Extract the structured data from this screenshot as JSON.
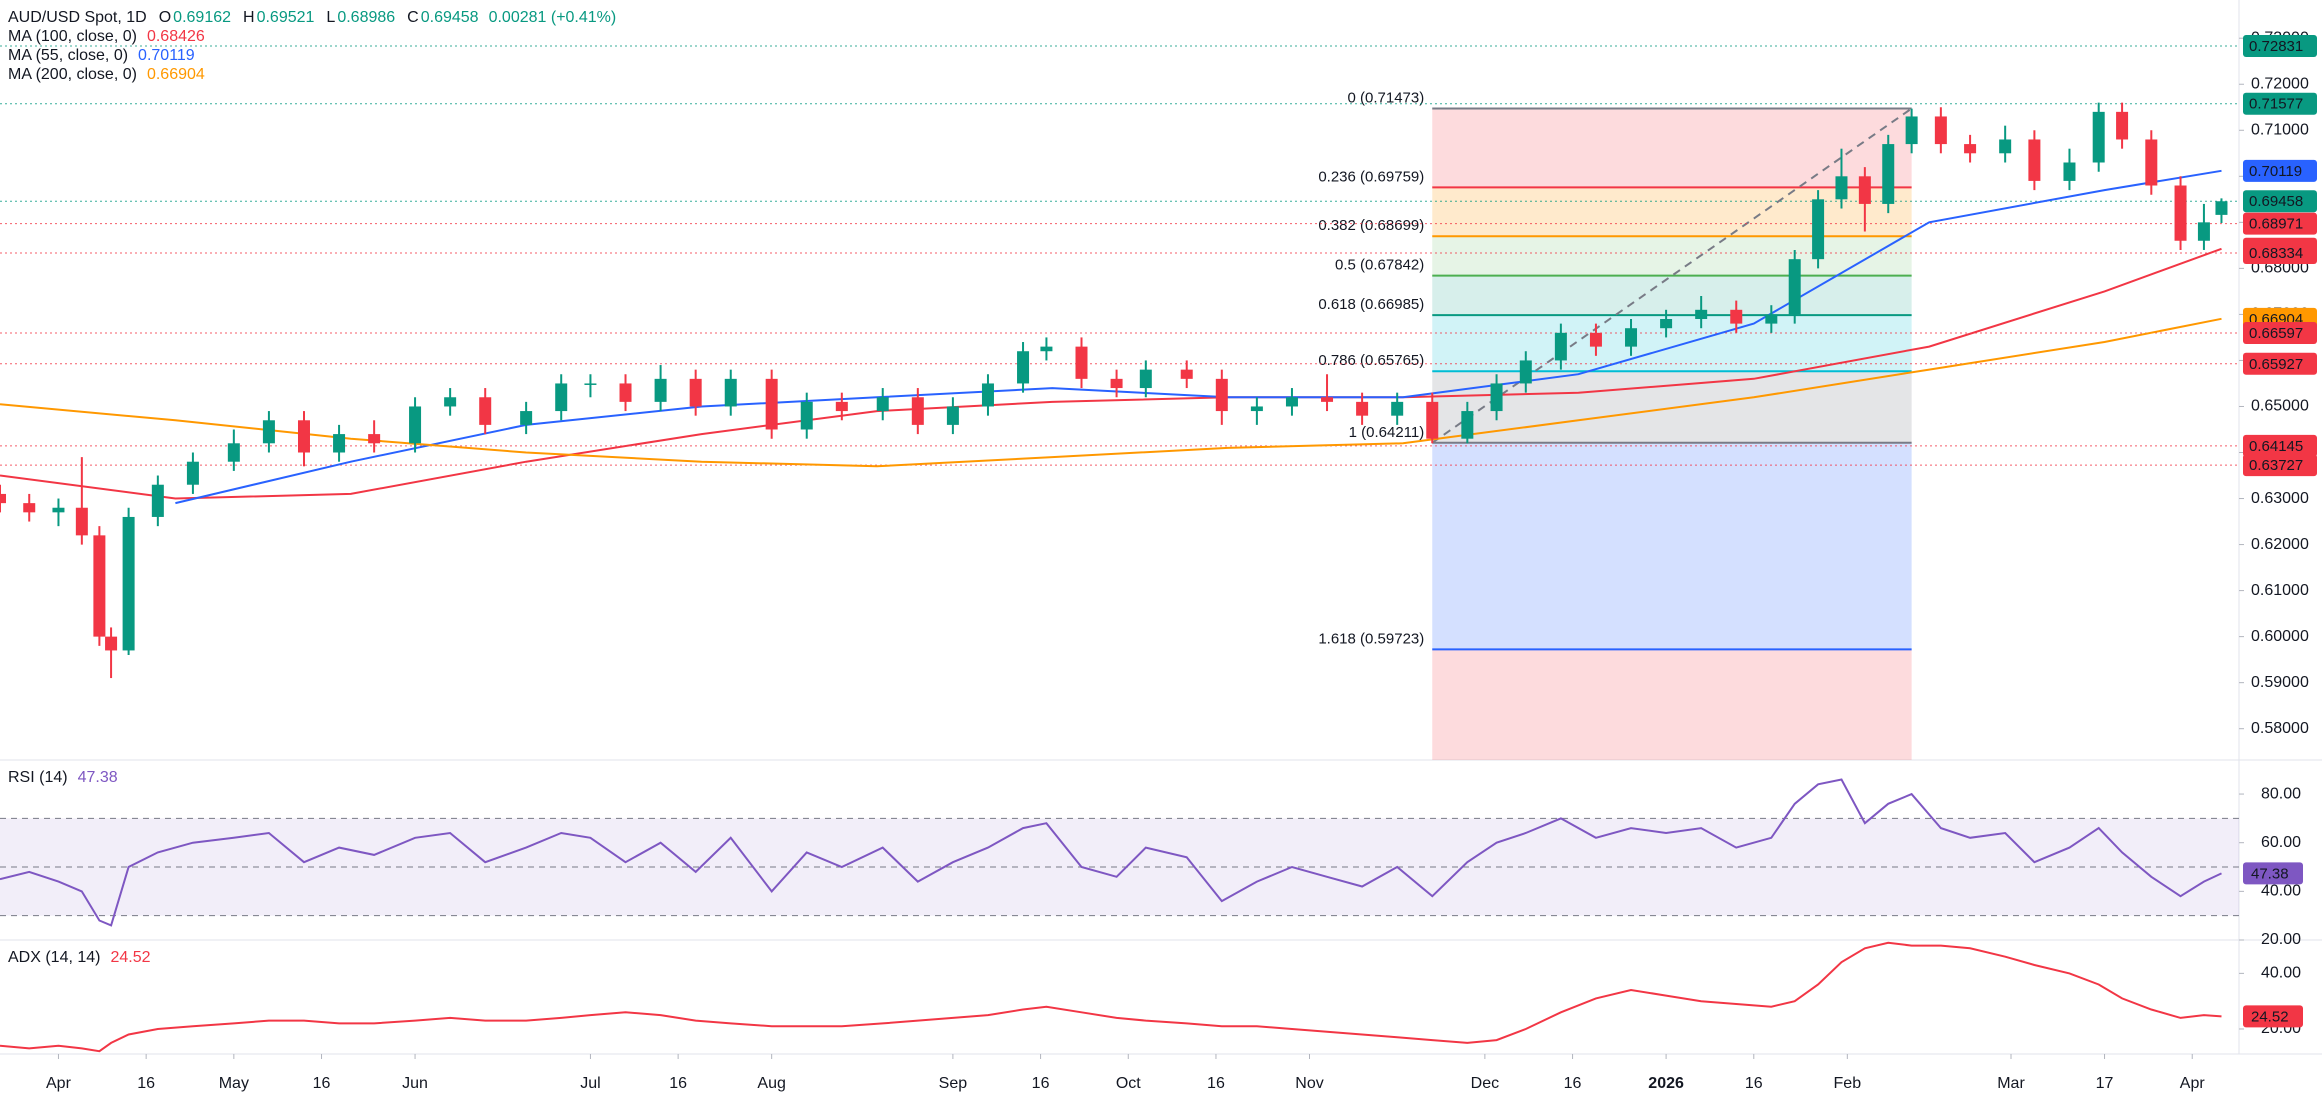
{
  "chart_data": {
    "type": "candlestick",
    "title": "AUD/USD Spot, 1D",
    "quote": [
      {
        "key": "O",
        "value": 0.69162
      },
      {
        "key": "H",
        "value": 0.69521
      },
      {
        "key": "L",
        "value": 0.68986
      },
      {
        "key": "C",
        "value": 0.69458
      }
    ],
    "change": "0.00281 (+0.41%)",
    "up_color": "#089981",
    "down_color": "#f23645",
    "x": [
      -10,
      -5,
      0,
      4,
      7,
      9,
      12,
      17,
      23,
      30,
      36,
      42,
      48,
      54,
      61,
      67,
      73,
      80,
      86,
      91,
      97,
      103,
      109,
      115,
      122,
      128,
      134,
      141,
      147,
      153,
      159,
      165,
      169,
      175,
      181,
      186,
      193,
      199,
      205,
      211,
      217,
      223,
      229,
      235,
      241,
      246,
      251,
      257,
      263,
      269,
      275,
      281,
      287,
      293,
      297,
      301,
      305,
      309,
      313,
      317,
      322,
      327,
      333,
      338,
      344,
      349,
      353,
      358,
      363,
      367,
      370
    ],
    "open": [
      0.631,
      0.629,
      0.627,
      0.628,
      0.622,
      0.6,
      0.597,
      0.626,
      0.633,
      0.638,
      0.642,
      0.647,
      0.64,
      0.644,
      0.642,
      0.65,
      0.652,
      0.646,
      0.649,
      0.655,
      0.655,
      0.651,
      0.656,
      0.65,
      0.656,
      0.645,
      0.651,
      0.649,
      0.652,
      0.646,
      0.65,
      0.655,
      0.662,
      0.663,
      0.656,
      0.654,
      0.658,
      0.656,
      0.649,
      0.65,
      0.652,
      0.651,
      0.648,
      0.651,
      0.643,
      0.649,
      0.655,
      0.66,
      0.666,
      0.663,
      0.667,
      0.669,
      0.671,
      0.668,
      0.67,
      0.682,
      0.695,
      0.7,
      0.694,
      0.707,
      0.713,
      0.707,
      0.705,
      0.708,
      0.699,
      0.703,
      0.714,
      0.708,
      0.698,
      0.686,
      0.69162
    ],
    "high": [
      0.633,
      0.631,
      0.63,
      0.639,
      0.624,
      0.602,
      0.628,
      0.635,
      0.64,
      0.645,
      0.649,
      0.649,
      0.646,
      0.647,
      0.652,
      0.654,
      0.654,
      0.651,
      0.657,
      0.657,
      0.657,
      0.659,
      0.658,
      0.658,
      0.658,
      0.653,
      0.653,
      0.654,
      0.654,
      0.652,
      0.657,
      0.664,
      0.665,
      0.665,
      0.658,
      0.66,
      0.66,
      0.658,
      0.652,
      0.654,
      0.657,
      0.653,
      0.653,
      0.653,
      0.651,
      0.657,
      0.662,
      0.668,
      0.668,
      0.669,
      0.671,
      0.674,
      0.673,
      0.672,
      0.684,
      0.697,
      0.706,
      0.702,
      0.709,
      0.7147,
      0.715,
      0.709,
      0.711,
      0.71,
      0.706,
      0.716,
      0.716,
      0.71,
      0.7,
      0.694,
      0.69521
    ],
    "low": [
      0.627,
      0.625,
      0.624,
      0.62,
      0.598,
      0.591,
      0.596,
      0.624,
      0.631,
      0.636,
      0.64,
      0.637,
      0.638,
      0.64,
      0.64,
      0.648,
      0.644,
      0.644,
      0.647,
      0.652,
      0.649,
      0.649,
      0.648,
      0.648,
      0.643,
      0.643,
      0.647,
      0.647,
      0.644,
      0.644,
      0.648,
      0.653,
      0.66,
      0.654,
      0.652,
      0.652,
      0.654,
      0.646,
      0.646,
      0.648,
      0.649,
      0.646,
      0.646,
      0.642,
      0.642,
      0.647,
      0.653,
      0.658,
      0.661,
      0.661,
      0.665,
      0.667,
      0.666,
      0.666,
      0.668,
      0.68,
      0.693,
      0.688,
      0.692,
      0.705,
      0.705,
      0.703,
      0.703,
      0.697,
      0.697,
      0.701,
      0.706,
      0.696,
      0.684,
      0.684,
      0.68986
    ],
    "close": [
      0.629,
      0.627,
      0.628,
      0.622,
      0.6,
      0.597,
      0.626,
      0.633,
      0.638,
      0.642,
      0.647,
      0.64,
      0.644,
      0.642,
      0.65,
      0.652,
      0.646,
      0.649,
      0.655,
      0.655,
      0.651,
      0.656,
      0.65,
      0.656,
      0.645,
      0.651,
      0.649,
      0.652,
      0.646,
      0.65,
      0.655,
      0.662,
      0.663,
      0.656,
      0.654,
      0.658,
      0.656,
      0.649,
      0.65,
      0.652,
      0.651,
      0.648,
      0.651,
      0.643,
      0.649,
      0.655,
      0.66,
      0.666,
      0.663,
      0.667,
      0.669,
      0.671,
      0.668,
      0.67,
      0.682,
      0.695,
      0.7,
      0.694,
      0.707,
      0.713,
      0.707,
      0.705,
      0.708,
      0.699,
      0.703,
      0.714,
      0.708,
      0.698,
      0.686,
      0.69,
      0.69458
    ],
    "xlim": [
      -10,
      373
    ],
    "xticks": [
      {
        "value": 0,
        "label": "Apr"
      },
      {
        "value": 15,
        "label": "16"
      },
      {
        "value": 30,
        "label": "May"
      },
      {
        "value": 45,
        "label": "16"
      },
      {
        "value": 61,
        "label": "Jun"
      },
      {
        "value": 91,
        "label": "Jul"
      },
      {
        "value": 106,
        "label": "16"
      },
      {
        "value": 122,
        "label": "Aug"
      },
      {
        "value": 153,
        "label": "Sep"
      },
      {
        "value": 168,
        "label": "16"
      },
      {
        "value": 183,
        "label": "Oct"
      },
      {
        "value": 198,
        "label": "16"
      },
      {
        "value": 214,
        "label": "Nov"
      },
      {
        "value": 244,
        "label": "Dec"
      },
      {
        "value": 259,
        "label": "16"
      },
      {
        "value": 275,
        "label": "2026"
      },
      {
        "value": 290,
        "label": "16"
      },
      {
        "value": 306,
        "label": "Feb"
      },
      {
        "value": 334,
        "label": "Mar"
      },
      {
        "value": 350,
        "label": "17"
      },
      {
        "value": 365,
        "label": "Apr"
      }
    ],
    "ylim": [
      0.5732,
      0.7383
    ],
    "yticks": [
      {
        "value": 0.58,
        "label": "0.58000"
      },
      {
        "value": 0.59,
        "label": "0.59000"
      },
      {
        "value": 0.6,
        "label": "0.60000"
      },
      {
        "value": 0.61,
        "label": "0.61000"
      },
      {
        "value": 0.62,
        "label": "0.62000"
      },
      {
        "value": 0.63,
        "label": "0.63000"
      },
      {
        "value": 0.64,
        "label": "0.64000"
      },
      {
        "value": 0.65,
        "label": "0.65000"
      },
      {
        "value": 0.66,
        "label": "0.66000"
      },
      {
        "value": 0.67,
        "label": "0.67000"
      },
      {
        "value": 0.68,
        "label": "0.68000"
      },
      {
        "value": 0.69,
        "label": "0.69000"
      },
      {
        "value": 0.7,
        "label": "0.70000"
      },
      {
        "value": 0.71,
        "label": "0.71000"
      },
      {
        "value": 0.72,
        "label": "0.72000"
      },
      {
        "value": 0.73,
        "label": "0.73000"
      }
    ],
    "ma_x": [
      -10,
      20,
      50,
      80,
      110,
      140,
      170,
      200,
      230,
      260,
      290,
      320,
      350,
      370
    ],
    "moving_averages": [
      {
        "name": "MA (100, close, 0)",
        "last": 0.68426,
        "color": "#f23645",
        "values": [
          0.635,
          0.63,
          0.631,
          0.638,
          0.644,
          0.649,
          0.651,
          0.652,
          0.652,
          0.653,
          0.656,
          0.663,
          0.675,
          0.68426
        ]
      },
      {
        "name": "MA (55, close, 0)",
        "last": 0.70119,
        "color": "#2962ff",
        "values": [
          null,
          0.629,
          0.638,
          0.646,
          0.65,
          0.652,
          0.654,
          0.652,
          0.652,
          0.657,
          0.668,
          0.69,
          0.697,
          0.70119
        ]
      },
      {
        "name": "MA (200, close, 0)",
        "last": 0.66904,
        "color": "#ff9800",
        "values": [
          0.6505,
          0.647,
          0.643,
          0.64,
          0.638,
          0.637,
          0.639,
          0.641,
          0.642,
          0.647,
          0.652,
          0.658,
          0.664,
          0.66904
        ]
      }
    ],
    "fib": {
      "x": [
        235,
        317
      ],
      "levels": [
        {
          "label": "0 (0.71473)",
          "price": 0.71473,
          "color": "#787b86",
          "fill": "rgba(242,54,69,0.18)"
        },
        {
          "label": "0.236 (0.69759)",
          "price": 0.69759,
          "color": "#f23645",
          "fill": "rgba(255,152,0,0.2)"
        },
        {
          "label": "0.382 (0.68699)",
          "price": 0.68699,
          "color": "#ff9800",
          "fill": "rgba(76,175,80,0.14)"
        },
        {
          "label": "0.5 (0.67842)",
          "price": 0.67842,
          "color": "#4caf50",
          "fill": "rgba(8,153,129,0.16)"
        },
        {
          "label": "0.618 (0.66985)",
          "price": 0.66985,
          "color": "#089981",
          "fill": "rgba(0,188,212,0.18)"
        },
        {
          "label": "0.786 (0.65765)",
          "price": 0.65765,
          "color": "#00bcd4",
          "fill": "rgba(120,123,134,0.2)"
        },
        {
          "label": "1 (0.64211)",
          "price": 0.64211,
          "color": "#787b86",
          "fill": "rgba(41,98,255,0.2)"
        },
        {
          "label": "1.618 (0.59723)",
          "price": 0.59723,
          "color": "#2962ff",
          "fill": "rgba(242,54,69,0.18)"
        }
      ]
    },
    "price_tags": [
      {
        "value": 0.72831,
        "color": "#089981"
      },
      {
        "value": 0.71577,
        "color": "#089981"
      },
      {
        "value": 0.70119,
        "color": "#2962ff"
      },
      {
        "value": 0.69458,
        "color": "#089981"
      },
      {
        "value": 0.68971,
        "color": "#f23645"
      },
      {
        "value": 0.68426,
        "color": "#f23645"
      },
      {
        "value": 0.68334,
        "color": "#f23645"
      },
      {
        "value": 0.66904,
        "color": "#ff9800"
      },
      {
        "value": 0.66597,
        "color": "#f23645"
      },
      {
        "value": 0.65927,
        "color": "#f23645"
      },
      {
        "value": 0.64145,
        "color": "#f23645"
      },
      {
        "value": 0.63727,
        "color": "#f23645"
      }
    ],
    "indicators": [
      {
        "name": "RSI (14)",
        "last": 47.38,
        "color": "#7e57c2",
        "ylim": [
          20,
          94
        ],
        "bands": [
          30,
          50,
          70
        ],
        "yticks": [
          {
            "value": 20,
            "label": "20.00"
          },
          {
            "value": 40,
            "label": "40.00"
          },
          {
            "value": 60,
            "label": "60.00"
          },
          {
            "value": 80,
            "label": "80.00"
          }
        ],
        "values": [
          45,
          48,
          44,
          40,
          28,
          26,
          50,
          56,
          60,
          62,
          64,
          52,
          58,
          55,
          62,
          64,
          52,
          58,
          64,
          62,
          52,
          60,
          48,
          62,
          40,
          56,
          50,
          58,
          44,
          52,
          58,
          66,
          68,
          50,
          46,
          58,
          54,
          36,
          44,
          50,
          46,
          42,
          50,
          38,
          52,
          60,
          64,
          70,
          62,
          66,
          64,
          66,
          58,
          62,
          76,
          84,
          86,
          68,
          76,
          80,
          66,
          62,
          64,
          52,
          58,
          66,
          56,
          46,
          38,
          44,
          47.38
        ]
      },
      {
        "name": "ADX (14, 14)",
        "last": 24.52,
        "color": "#f23645",
        "ylim": [
          11,
          52
        ],
        "yticks": [
          {
            "value": 20,
            "label": "20.00"
          },
          {
            "value": 40,
            "label": "40.00"
          }
        ],
        "values": [
          14,
          13,
          14,
          13,
          12,
          15,
          18,
          20,
          21,
          22,
          23,
          23,
          22,
          22,
          23,
          24,
          23,
          23,
          24,
          25,
          26,
          25,
          23,
          22,
          21,
          21,
          21,
          22,
          23,
          24,
          25,
          27,
          28,
          26,
          24,
          23,
          22,
          21,
          21,
          20,
          19,
          18,
          17,
          16,
          15,
          16,
          20,
          26,
          31,
          34,
          32,
          30,
          29,
          28,
          30,
          36,
          44,
          49,
          51,
          50,
          50,
          49,
          46,
          43,
          40,
          36,
          31,
          27,
          24,
          25,
          24.52
        ]
      }
    ]
  }
}
